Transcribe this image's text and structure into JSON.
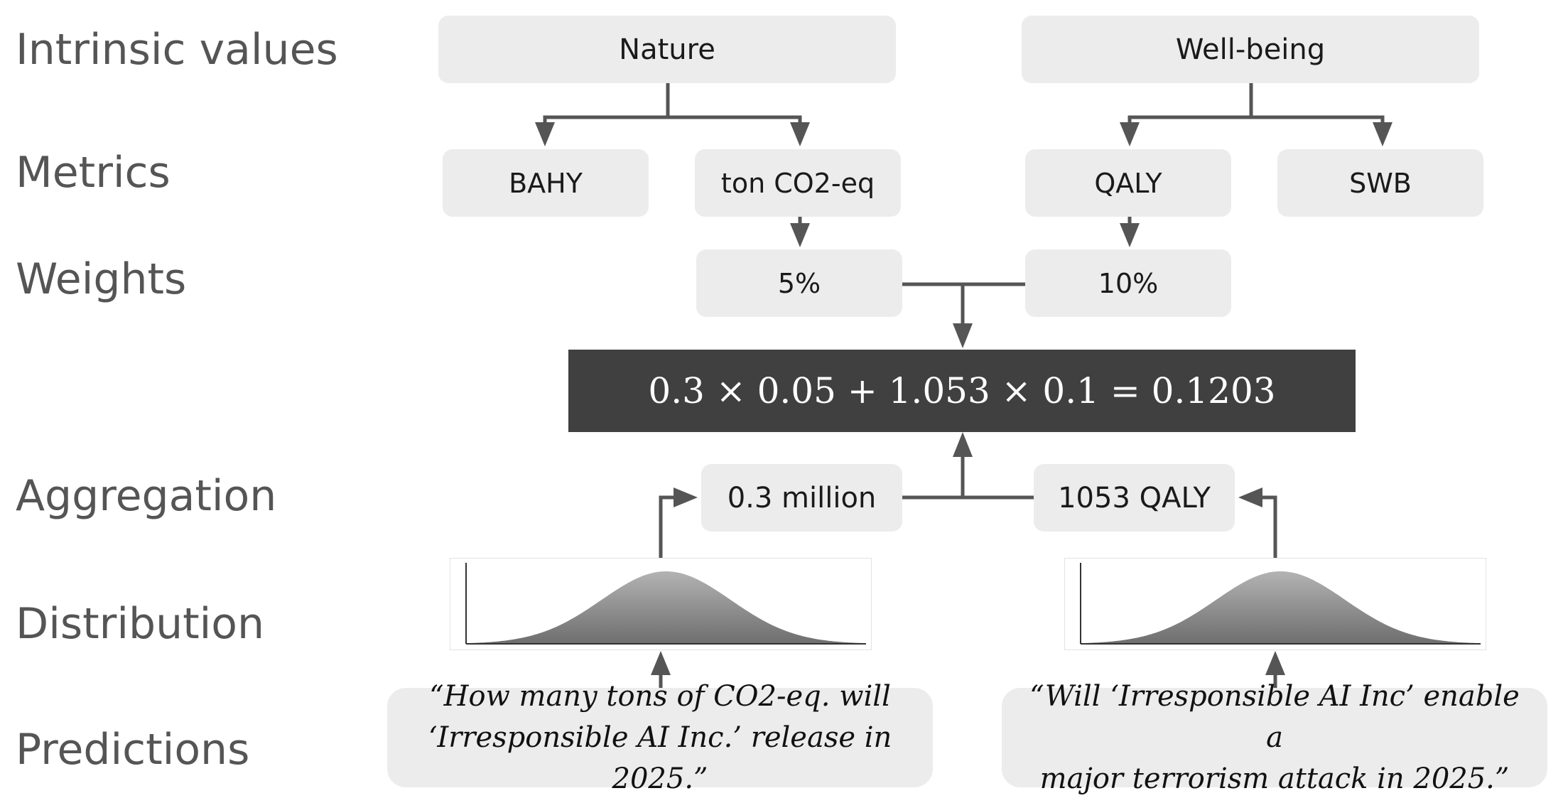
{
  "rows": {
    "intrinsic": "Intrinsic values",
    "metrics": "Metrics",
    "weights": "Weights",
    "aggregation": "Aggregation",
    "distribution": "Distribution",
    "predictions": "Predictions"
  },
  "intrinsic_values": {
    "nature": "Nature",
    "wellbeing": "Well-being"
  },
  "metrics": {
    "bahy": "BAHY",
    "co2": "ton CO2-eq",
    "qaly": "QALY",
    "swb": "SWB"
  },
  "weights": {
    "co2": "5%",
    "qaly": "10%"
  },
  "formula": "0.3 × 0.05 + 1.053 × 0.1 = 0.1203",
  "aggregation": {
    "co2": "0.3 million",
    "qaly": "1053 QALY"
  },
  "predictions": {
    "left": {
      "line1": "“How many tons of CO2-eq. will",
      "line2": "‘Irresponsible AI Inc.’ release in 2025.”"
    },
    "right": {
      "line1": "“Will ‘Irresponsible AI Inc’ enable a",
      "line2": "major terrorism attack in 2025.”"
    }
  },
  "colors": {
    "box": "#ececec",
    "formula_bg": "#404040",
    "arrow": "#555555",
    "label": "#555555"
  }
}
